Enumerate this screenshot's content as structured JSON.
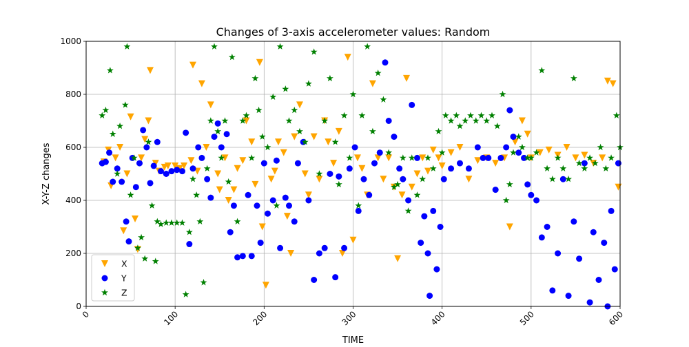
{
  "chart_data": {
    "type": "scatter",
    "title": "Changes of 3-axis accelerometer values: Random",
    "xlabel": "TIME",
    "ylabel": "X-Y-Z changes",
    "xlim": [
      0,
      600
    ],
    "ylim": [
      0,
      1000
    ],
    "xticks": [
      0,
      100,
      200,
      300,
      400,
      500,
      600
    ],
    "yticks": [
      0,
      200,
      400,
      600,
      800,
      1000
    ],
    "grid": true,
    "legend_position": "bottom-left",
    "series": [
      {
        "name": "X",
        "marker": "triangle-down",
        "color": "#ffa500",
        "points": [
          [
            20,
            545
          ],
          [
            25,
            590
          ],
          [
            28,
            455
          ],
          [
            33,
            560
          ],
          [
            38,
            600
          ],
          [
            42,
            285
          ],
          [
            46,
            500
          ],
          [
            50,
            715
          ],
          [
            55,
            330
          ],
          [
            58,
            215
          ],
          [
            62,
            560
          ],
          [
            66,
            630
          ],
          [
            70,
            700
          ],
          [
            72,
            890
          ],
          [
            78,
            540
          ],
          [
            82,
            510
          ],
          [
            88,
            525
          ],
          [
            92,
            530
          ],
          [
            100,
            530
          ],
          [
            105,
            520
          ],
          [
            110,
            530
          ],
          [
            118,
            550
          ],
          [
            120,
            910
          ],
          [
            125,
            510
          ],
          [
            130,
            840
          ],
          [
            135,
            600
          ],
          [
            140,
            760
          ],
          [
            148,
            500
          ],
          [
            150,
            440
          ],
          [
            156,
            560
          ],
          [
            160,
            400
          ],
          [
            166,
            440
          ],
          [
            170,
            520
          ],
          [
            176,
            550
          ],
          [
            180,
            700
          ],
          [
            186,
            620
          ],
          [
            190,
            460
          ],
          [
            195,
            920
          ],
          [
            198,
            300
          ],
          [
            202,
            80
          ],
          [
            208,
            480
          ],
          [
            212,
            510
          ],
          [
            216,
            620
          ],
          [
            222,
            580
          ],
          [
            226,
            340
          ],
          [
            230,
            200
          ],
          [
            234,
            640
          ],
          [
            240,
            760
          ],
          [
            246,
            500
          ],
          [
            250,
            420
          ],
          [
            256,
            640
          ],
          [
            262,
            480
          ],
          [
            268,
            700
          ],
          [
            272,
            620
          ],
          [
            278,
            540
          ],
          [
            284,
            660
          ],
          [
            288,
            200
          ],
          [
            294,
            940
          ],
          [
            300,
            250
          ],
          [
            305,
            560
          ],
          [
            310,
            520
          ],
          [
            316,
            420
          ],
          [
            322,
            840
          ],
          [
            328,
            560
          ],
          [
            334,
            480
          ],
          [
            340,
            560
          ],
          [
            346,
            450
          ],
          [
            350,
            180
          ],
          [
            355,
            420
          ],
          [
            360,
            860
          ],
          [
            366,
            450
          ],
          [
            372,
            500
          ],
          [
            378,
            560
          ],
          [
            384,
            510
          ],
          [
            390,
            590
          ],
          [
            396,
            560
          ],
          [
            400,
            530
          ],
          [
            410,
            580
          ],
          [
            420,
            600
          ],
          [
            430,
            480
          ],
          [
            440,
            550
          ],
          [
            450,
            560
          ],
          [
            460,
            540
          ],
          [
            470,
            560
          ],
          [
            476,
            300
          ],
          [
            482,
            620
          ],
          [
            490,
            700
          ],
          [
            496,
            650
          ],
          [
            500,
            560
          ],
          [
            510,
            580
          ],
          [
            520,
            590
          ],
          [
            530,
            570
          ],
          [
            540,
            600
          ],
          [
            550,
            560
          ],
          [
            560,
            570
          ],
          [
            570,
            540
          ],
          [
            580,
            560
          ],
          [
            586,
            850
          ],
          [
            592,
            840
          ],
          [
            598,
            450
          ]
        ]
      },
      {
        "name": "Y",
        "marker": "circle",
        "color": "#0000ff",
        "points": [
          [
            18,
            540
          ],
          [
            22,
            545
          ],
          [
            26,
            580
          ],
          [
            30,
            470
          ],
          [
            35,
            520
          ],
          [
            40,
            470
          ],
          [
            45,
            320
          ],
          [
            48,
            245
          ],
          [
            52,
            560
          ],
          [
            56,
            450
          ],
          [
            60,
            540
          ],
          [
            64,
            665
          ],
          [
            68,
            600
          ],
          [
            72,
            465
          ],
          [
            76,
            530
          ],
          [
            80,
            620
          ],
          [
            84,
            510
          ],
          [
            90,
            500
          ],
          [
            96,
            510
          ],
          [
            102,
            515
          ],
          [
            108,
            510
          ],
          [
            112,
            655
          ],
          [
            116,
            235
          ],
          [
            120,
            520
          ],
          [
            126,
            600
          ],
          [
            130,
            560
          ],
          [
            136,
            480
          ],
          [
            140,
            410
          ],
          [
            144,
            640
          ],
          [
            148,
            690
          ],
          [
            152,
            600
          ],
          [
            158,
            650
          ],
          [
            162,
            280
          ],
          [
            166,
            380
          ],
          [
            170,
            185
          ],
          [
            176,
            190
          ],
          [
            182,
            420
          ],
          [
            186,
            190
          ],
          [
            192,
            380
          ],
          [
            196,
            240
          ],
          [
            200,
            540
          ],
          [
            204,
            350
          ],
          [
            210,
            400
          ],
          [
            214,
            550
          ],
          [
            218,
            220
          ],
          [
            224,
            410
          ],
          [
            228,
            380
          ],
          [
            234,
            320
          ],
          [
            238,
            540
          ],
          [
            244,
            620
          ],
          [
            250,
            400
          ],
          [
            256,
            100
          ],
          [
            262,
            200
          ],
          [
            268,
            220
          ],
          [
            274,
            500
          ],
          [
            280,
            110
          ],
          [
            284,
            490
          ],
          [
            290,
            220
          ],
          [
            296,
            520
          ],
          [
            302,
            600
          ],
          [
            306,
            360
          ],
          [
            312,
            480
          ],
          [
            318,
            420
          ],
          [
            324,
            540
          ],
          [
            330,
            580
          ],
          [
            336,
            920
          ],
          [
            340,
            700
          ],
          [
            346,
            640
          ],
          [
            352,
            520
          ],
          [
            356,
            480
          ],
          [
            362,
            400
          ],
          [
            366,
            760
          ],
          [
            372,
            560
          ],
          [
            376,
            240
          ],
          [
            380,
            340
          ],
          [
            384,
            200
          ],
          [
            386,
            40
          ],
          [
            390,
            360
          ],
          [
            394,
            140
          ],
          [
            398,
            300
          ],
          [
            402,
            480
          ],
          [
            410,
            520
          ],
          [
            420,
            540
          ],
          [
            430,
            520
          ],
          [
            440,
            600
          ],
          [
            446,
            560
          ],
          [
            452,
            560
          ],
          [
            460,
            440
          ],
          [
            466,
            560
          ],
          [
            472,
            600
          ],
          [
            476,
            740
          ],
          [
            480,
            640
          ],
          [
            486,
            580
          ],
          [
            492,
            560
          ],
          [
            496,
            460
          ],
          [
            500,
            420
          ],
          [
            506,
            400
          ],
          [
            512,
            260
          ],
          [
            518,
            300
          ],
          [
            524,
            60
          ],
          [
            530,
            200
          ],
          [
            536,
            480
          ],
          [
            542,
            40
          ],
          [
            548,
            320
          ],
          [
            554,
            180
          ],
          [
            560,
            540
          ],
          [
            566,
            15
          ],
          [
            570,
            280
          ],
          [
            576,
            100
          ],
          [
            582,
            240
          ],
          [
            586,
            0
          ],
          [
            590,
            360
          ],
          [
            594,
            140
          ],
          [
            598,
            540
          ]
        ]
      },
      {
        "name": "Z",
        "marker": "star",
        "color": "#008000",
        "points": [
          [
            18,
            720
          ],
          [
            22,
            740
          ],
          [
            27,
            890
          ],
          [
            30,
            650
          ],
          [
            35,
            500
          ],
          [
            38,
            680
          ],
          [
            44,
            760
          ],
          [
            46,
            980
          ],
          [
            50,
            420
          ],
          [
            54,
            560
          ],
          [
            58,
            220
          ],
          [
            62,
            260
          ],
          [
            66,
            180
          ],
          [
            70,
            620
          ],
          [
            74,
            380
          ],
          [
            78,
            170
          ],
          [
            80,
            320
          ],
          [
            84,
            310
          ],
          [
            90,
            315
          ],
          [
            96,
            315
          ],
          [
            102,
            315
          ],
          [
            108,
            315
          ],
          [
            112,
            45
          ],
          [
            116,
            280
          ],
          [
            120,
            480
          ],
          [
            124,
            420
          ],
          [
            128,
            320
          ],
          [
            132,
            90
          ],
          [
            136,
            520
          ],
          [
            140,
            700
          ],
          [
            144,
            980
          ],
          [
            148,
            660
          ],
          [
            152,
            560
          ],
          [
            156,
            700
          ],
          [
            160,
            470
          ],
          [
            164,
            940
          ],
          [
            170,
            320
          ],
          [
            176,
            700
          ],
          [
            180,
            720
          ],
          [
            186,
            560
          ],
          [
            190,
            860
          ],
          [
            194,
            740
          ],
          [
            198,
            640
          ],
          [
            204,
            600
          ],
          [
            210,
            790
          ],
          [
            214,
            380
          ],
          [
            218,
            980
          ],
          [
            224,
            820
          ],
          [
            228,
            700
          ],
          [
            234,
            740
          ],
          [
            240,
            660
          ],
          [
            246,
            620
          ],
          [
            250,
            840
          ],
          [
            256,
            960
          ],
          [
            262,
            500
          ],
          [
            268,
            700
          ],
          [
            274,
            860
          ],
          [
            280,
            620
          ],
          [
            284,
            460
          ],
          [
            290,
            720
          ],
          [
            296,
            560
          ],
          [
            300,
            800
          ],
          [
            306,
            380
          ],
          [
            310,
            720
          ],
          [
            316,
            980
          ],
          [
            322,
            660
          ],
          [
            328,
            880
          ],
          [
            334,
            780
          ],
          [
            340,
            580
          ],
          [
            346,
            450
          ],
          [
            350,
            460
          ],
          [
            356,
            560
          ],
          [
            362,
            360
          ],
          [
            366,
            560
          ],
          [
            372,
            420
          ],
          [
            378,
            480
          ],
          [
            384,
            560
          ],
          [
            390,
            520
          ],
          [
            396,
            660
          ],
          [
            400,
            580
          ],
          [
            404,
            720
          ],
          [
            410,
            700
          ],
          [
            416,
            720
          ],
          [
            420,
            680
          ],
          [
            426,
            700
          ],
          [
            432,
            720
          ],
          [
            438,
            700
          ],
          [
            444,
            720
          ],
          [
            450,
            700
          ],
          [
            456,
            720
          ],
          [
            462,
            680
          ],
          [
            468,
            800
          ],
          [
            472,
            400
          ],
          [
            476,
            460
          ],
          [
            480,
            580
          ],
          [
            486,
            640
          ],
          [
            490,
            600
          ],
          [
            496,
            560
          ],
          [
            500,
            560
          ],
          [
            506,
            580
          ],
          [
            512,
            890
          ],
          [
            518,
            520
          ],
          [
            524,
            480
          ],
          [
            530,
            560
          ],
          [
            536,
            520
          ],
          [
            542,
            480
          ],
          [
            548,
            860
          ],
          [
            554,
            540
          ],
          [
            560,
            520
          ],
          [
            566,
            560
          ],
          [
            572,
            540
          ],
          [
            578,
            600
          ],
          [
            584,
            520
          ],
          [
            590,
            560
          ],
          [
            596,
            720
          ],
          [
            600,
            600
          ]
        ]
      }
    ]
  }
}
